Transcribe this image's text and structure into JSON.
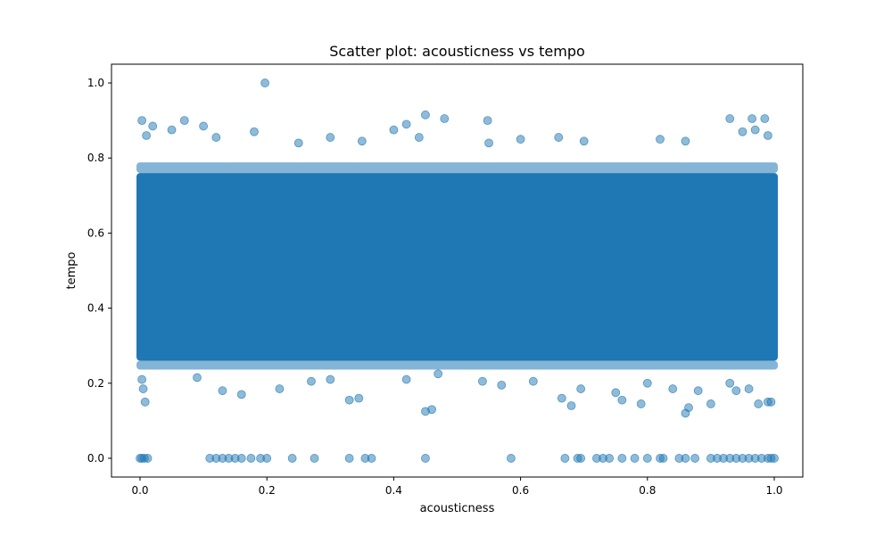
{
  "chart_data": {
    "type": "scatter",
    "title": "Scatter plot: acousticness vs tempo",
    "xlabel": "acousticness",
    "ylabel": "tempo",
    "xlim": [
      -0.045,
      1.045
    ],
    "ylim": [
      -0.05,
      1.05
    ],
    "x_ticks": [
      "0.0",
      "0.2",
      "0.4",
      "0.6",
      "0.8",
      "1.0"
    ],
    "y_ticks": [
      "0.0",
      "0.2",
      "0.4",
      "0.6",
      "0.8",
      "1.0"
    ],
    "grid": false,
    "marker_color": "#1f77b4",
    "marker_alpha": 0.5,
    "dense_region": {
      "x": [
        0.0,
        1.0
      ],
      "y": [
        0.26,
        0.76
      ]
    },
    "points": [
      [
        0.197,
        1.0
      ],
      [
        0.003,
        0.9
      ],
      [
        0.07,
        0.9
      ],
      [
        0.45,
        0.915
      ],
      [
        0.48,
        0.905
      ],
      [
        0.548,
        0.9
      ],
      [
        0.93,
        0.905
      ],
      [
        0.965,
        0.905
      ],
      [
        0.985,
        0.905
      ],
      [
        0.02,
        0.885
      ],
      [
        0.1,
        0.885
      ],
      [
        0.42,
        0.89
      ],
      [
        0.05,
        0.875
      ],
      [
        0.18,
        0.87
      ],
      [
        0.4,
        0.875
      ],
      [
        0.97,
        0.875
      ],
      [
        0.95,
        0.87
      ],
      [
        0.01,
        0.86
      ],
      [
        0.12,
        0.855
      ],
      [
        0.3,
        0.855
      ],
      [
        0.44,
        0.855
      ],
      [
        0.66,
        0.855
      ],
      [
        0.82,
        0.85
      ],
      [
        0.99,
        0.86
      ],
      [
        0.35,
        0.845
      ],
      [
        0.7,
        0.845
      ],
      [
        0.86,
        0.845
      ],
      [
        0.55,
        0.84
      ],
      [
        0.25,
        0.84
      ],
      [
        0.6,
        0.85
      ],
      [
        0.008,
        0.15
      ],
      [
        0.005,
        0.185
      ],
      [
        0.003,
        0.21
      ],
      [
        0.09,
        0.215
      ],
      [
        0.13,
        0.18
      ],
      [
        0.16,
        0.17
      ],
      [
        0.22,
        0.185
      ],
      [
        0.27,
        0.205
      ],
      [
        0.33,
        0.155
      ],
      [
        0.345,
        0.16
      ],
      [
        0.42,
        0.21
      ],
      [
        0.45,
        0.125
      ],
      [
        0.46,
        0.13
      ],
      [
        0.47,
        0.225
      ],
      [
        0.54,
        0.205
      ],
      [
        0.57,
        0.195
      ],
      [
        0.665,
        0.16
      ],
      [
        0.68,
        0.14
      ],
      [
        0.695,
        0.185
      ],
      [
        0.75,
        0.175
      ],
      [
        0.76,
        0.155
      ],
      [
        0.79,
        0.145
      ],
      [
        0.84,
        0.185
      ],
      [
        0.86,
        0.12
      ],
      [
        0.865,
        0.135
      ],
      [
        0.88,
        0.18
      ],
      [
        0.9,
        0.145
      ],
      [
        0.94,
        0.18
      ],
      [
        0.975,
        0.145
      ],
      [
        0.99,
        0.15
      ],
      [
        0.995,
        0.15
      ],
      [
        0.93,
        0.2
      ],
      [
        0.96,
        0.185
      ],
      [
        0.62,
        0.205
      ],
      [
        0.8,
        0.2
      ],
      [
        0.3,
        0.21
      ],
      [
        0.0,
        0.0
      ],
      [
        0.003,
        0.0
      ],
      [
        0.007,
        0.0
      ],
      [
        0.012,
        0.0
      ],
      [
        0.11,
        0.0
      ],
      [
        0.12,
        0.0
      ],
      [
        0.13,
        0.0
      ],
      [
        0.14,
        0.0
      ],
      [
        0.15,
        0.0
      ],
      [
        0.16,
        0.0
      ],
      [
        0.175,
        0.0
      ],
      [
        0.19,
        0.0
      ],
      [
        0.2,
        0.0
      ],
      [
        0.24,
        0.0
      ],
      [
        0.275,
        0.0
      ],
      [
        0.33,
        0.0
      ],
      [
        0.355,
        0.0
      ],
      [
        0.365,
        0.0
      ],
      [
        0.45,
        0.0
      ],
      [
        0.585,
        0.0
      ],
      [
        0.67,
        0.0
      ],
      [
        0.69,
        0.0
      ],
      [
        0.695,
        0.0
      ],
      [
        0.72,
        0.0
      ],
      [
        0.73,
        0.0
      ],
      [
        0.74,
        0.0
      ],
      [
        0.76,
        0.0
      ],
      [
        0.78,
        0.0
      ],
      [
        0.8,
        0.0
      ],
      [
        0.82,
        0.0
      ],
      [
        0.825,
        0.0
      ],
      [
        0.85,
        0.0
      ],
      [
        0.86,
        0.0
      ],
      [
        0.875,
        0.0
      ],
      [
        0.9,
        0.0
      ],
      [
        0.91,
        0.0
      ],
      [
        0.92,
        0.0
      ],
      [
        0.93,
        0.0
      ],
      [
        0.94,
        0.0
      ],
      [
        0.95,
        0.0
      ],
      [
        0.96,
        0.0
      ],
      [
        0.97,
        0.0
      ],
      [
        0.98,
        0.0
      ],
      [
        0.99,
        0.0
      ],
      [
        0.995,
        0.0
      ],
      [
        1.0,
        0.0
      ]
    ]
  }
}
